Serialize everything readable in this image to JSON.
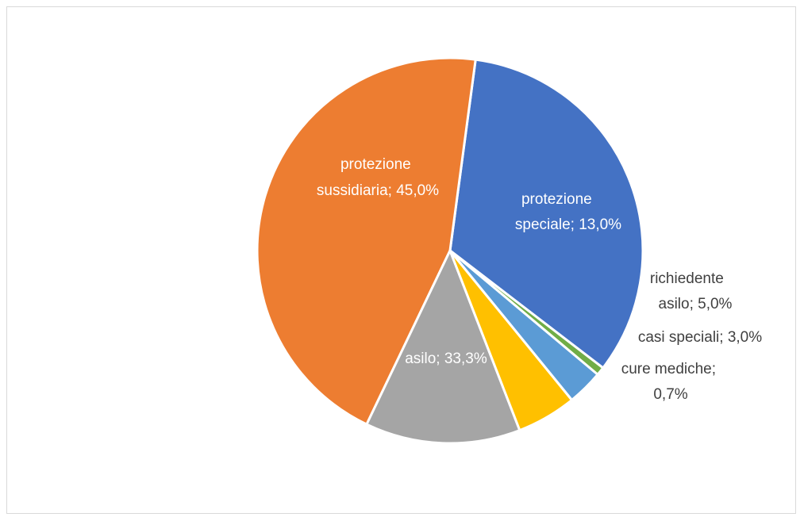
{
  "chart_data": {
    "type": "pie",
    "title": "",
    "slices": [
      {
        "label": "asilo; 33,3%",
        "name": "asilo",
        "value": 33.3,
        "color": "#4472c4",
        "label_color": "#ffffff"
      },
      {
        "label": "protezione sussidiaria; 45,0%",
        "name": "protezione sussidiaria",
        "value": 45.0,
        "color": "#ed7d31",
        "label_color": "#ffffff"
      },
      {
        "label": "protezione speciale; 13,0%",
        "name": "protezione speciale",
        "value": 13.0,
        "color": "#a5a5a5",
        "label_color": "#ffffff"
      },
      {
        "label": "richiedente asilo; 5,0%",
        "name": "richiedente asilo",
        "value": 5.0,
        "color": "#ffc000",
        "label_color": "#404040"
      },
      {
        "label": "casi speciali; 3,0%",
        "name": "casi speciali",
        "value": 3.0,
        "color": "#5b9bd5",
        "label_color": "#404040"
      },
      {
        "label": "cure mediche; 0,7%",
        "name": "cure mediche",
        "value": 0.7,
        "color": "#70ad47",
        "label_color": "#404040"
      }
    ],
    "legend": "none",
    "data_labels": "category; percentage"
  }
}
